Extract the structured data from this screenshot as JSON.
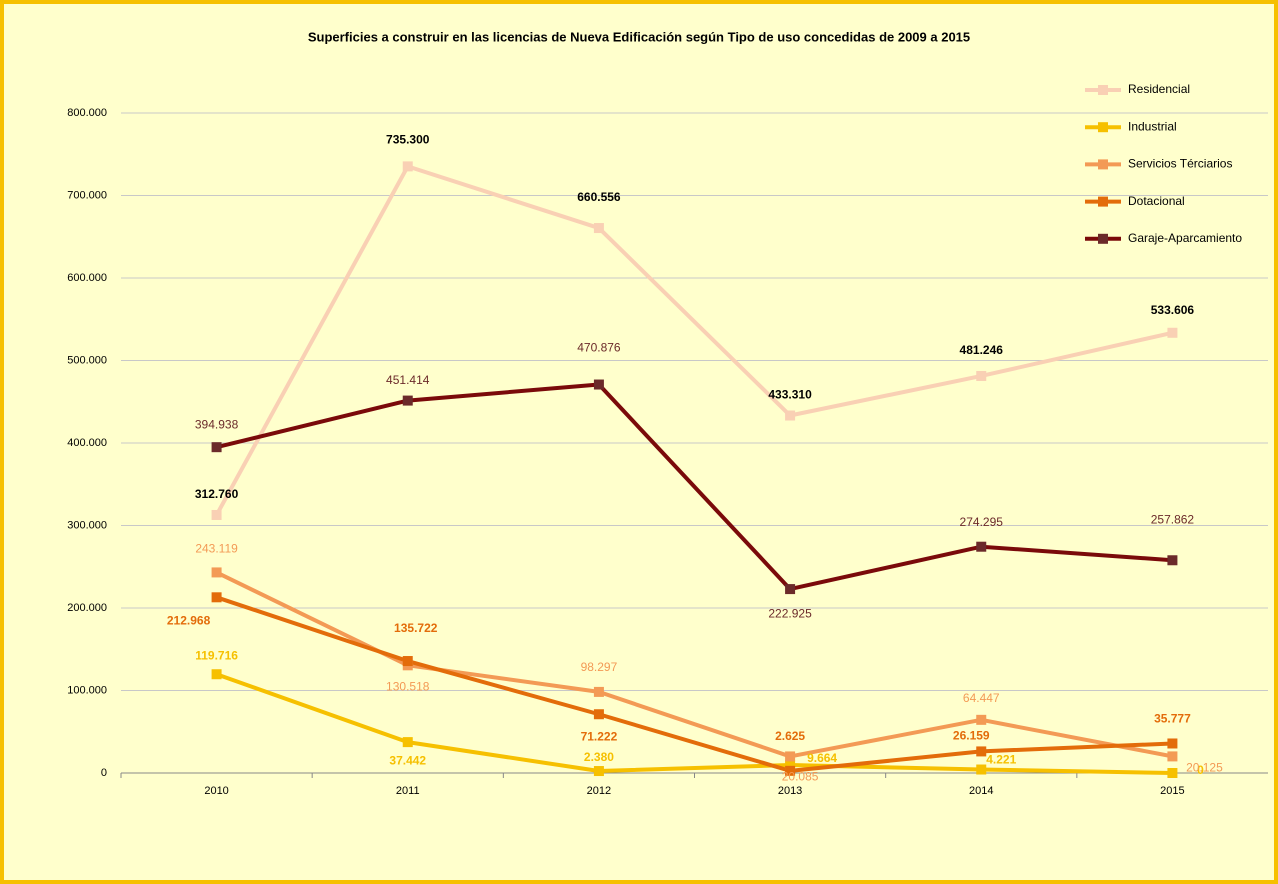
{
  "chart_data": {
    "type": "line",
    "title": "Superficies a construir en las licencias de Nueva Edificación según Tipo de uso concedidas de 2009 a 2015",
    "categories": [
      "2010",
      "2011",
      "2012",
      "2013",
      "2014",
      "2015"
    ],
    "ylim": [
      0,
      800000
    ],
    "yticks": [
      0,
      {
        "value": 100000,
        "label": "100.000"
      },
      {
        "value": 200000,
        "label": "200.000"
      },
      {
        "value": 300000,
        "label": "300.000"
      },
      {
        "value": 400000,
        "label": "400.000"
      },
      {
        "value": 500000,
        "label": "500.000"
      },
      {
        "value": 600000,
        "label": "600.000"
      },
      {
        "value": 700000,
        "label": "700.000"
      },
      {
        "value": 800000,
        "label": "800.000"
      }
    ],
    "grid": true,
    "legend": "top-right",
    "series": [
      {
        "name": "Residencial",
        "color": "#f9d0b4",
        "values": [
          312760,
          735300,
          660556,
          433310,
          481246,
          533606
        ],
        "value_labels": [
          "312.760",
          "735.300",
          "660.556",
          "433.310",
          "481.246",
          "533.606"
        ]
      },
      {
        "name": "Industrial",
        "color": "#f6c000",
        "values": [
          119716,
          37442,
          2380,
          9664,
          4221,
          0
        ],
        "value_labels": [
          "119.716",
          "37.442",
          "2.380",
          "9.664",
          "4.221",
          "0"
        ]
      },
      {
        "name": "Servicios Térciarios",
        "color": "#f39a55",
        "values": [
          243119,
          130518,
          98297,
          20085,
          64447,
          20125
        ],
        "value_labels": [
          "243.119",
          "130.518",
          "98.297",
          "20.085",
          "64.447",
          "20.125"
        ]
      },
      {
        "name": "Dotacional",
        "color": "#e36c0a",
        "values": [
          212968,
          135722,
          71222,
          2625,
          26159,
          35777
        ],
        "value_labels": [
          "212.968",
          "135.722",
          "71.222",
          "2.625",
          "26.159",
          "35.777"
        ]
      },
      {
        "name": "Garaje-Aparcamiento",
        "color": "#7a0a0a",
        "values": [
          394938,
          451414,
          470876,
          222925,
          274295,
          257862
        ],
        "value_labels": [
          "394.938",
          "451.414",
          "470.876",
          "222.925",
          "274.295",
          "257.862"
        ]
      }
    ]
  }
}
